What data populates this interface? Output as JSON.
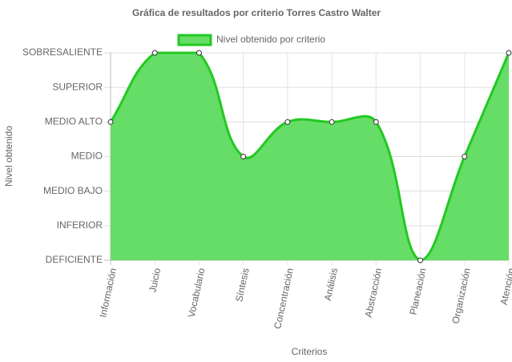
{
  "chart_data": {
    "type": "area",
    "title": "Gráfica de resultados por criterio Torres Castro Walter",
    "x_label": "Criterios",
    "y_label": "Nivel obtenido",
    "categories": [
      "Información",
      "Juicio",
      "Vocabulario",
      "Síntesis",
      "Concentración",
      "Análisis",
      "Abstracción",
      "Planeación",
      "Organización",
      "Atención"
    ],
    "series": [
      {
        "name": "Nivel obtenido por criterio",
        "color": "#22c922",
        "fill": "#66dd66",
        "values": [
          4,
          6,
          6,
          3,
          4,
          4,
          4,
          0,
          3,
          6
        ]
      }
    ],
    "ylim": [
      0,
      6
    ],
    "yticks": [
      {
        "value": 0,
        "label": "DEFICIENTE"
      },
      {
        "value": 1,
        "label": "INFERIOR"
      },
      {
        "value": 2,
        "label": "MEDIO BAJO"
      },
      {
        "value": 3,
        "label": "MEDIO"
      },
      {
        "value": 4,
        "label": "MEDIO ALTO"
      },
      {
        "value": 5,
        "label": "SUPERIOR"
      },
      {
        "value": 6,
        "label": "SOBRESALIENTE"
      }
    ],
    "grid": true,
    "legend": "top"
  }
}
